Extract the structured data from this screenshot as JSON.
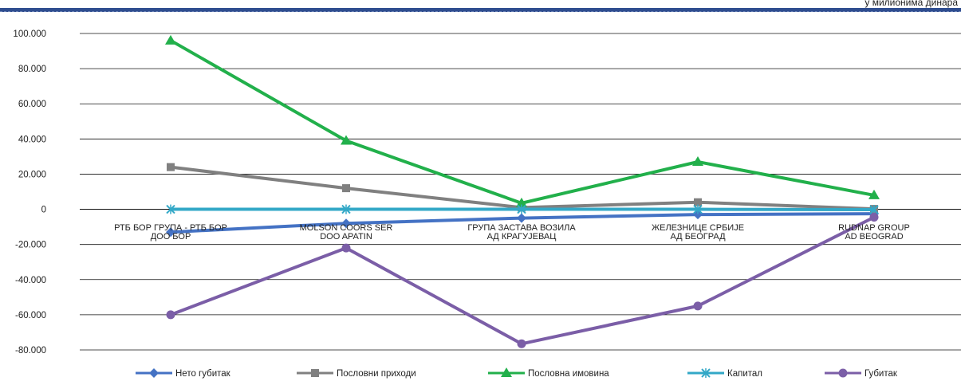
{
  "unit_label": "у милионима динара",
  "chart_data": {
    "type": "line",
    "title": "",
    "xlabel": "",
    "ylabel": "",
    "ylim": [
      -80000,
      100000
    ],
    "yticks": [
      100000,
      80000,
      60000,
      40000,
      20000,
      0,
      -20000,
      -40000,
      -60000,
      -80000
    ],
    "ytick_labels": [
      "100.000",
      "80.000",
      "60.000",
      "40.000",
      "20.000",
      "0",
      "-20.000",
      "-40.000",
      "-60.000",
      "-80.000"
    ],
    "grid": true,
    "legend_position": "bottom",
    "categories": [
      [
        "РТБ БОР ГРУПА - РТБ БОР",
        "ДОО БОР"
      ],
      [
        "MOLSON COORS SER",
        "DOO APATIN"
      ],
      [
        "ГРУПА ЗАСТАВА ВОЗИЛА",
        "АД КРАГУЈЕВАЦ"
      ],
      [
        "ЖЕЛЕЗНИЦЕ СРБИЈЕ",
        "АД БЕОГРАД"
      ],
      [
        "RUDNAP GROUP",
        "AD BEOGRAD"
      ]
    ],
    "series": [
      {
        "name": "Нето губитак",
        "color": "#4472c4",
        "marker": "diamond",
        "values": [
          -13000,
          -8000,
          -5000,
          -3000,
          -2500
        ]
      },
      {
        "name": "Пословни приходи",
        "color": "#808080",
        "marker": "square",
        "values": [
          24000,
          12000,
          1000,
          4000,
          200
        ]
      },
      {
        "name": "Пословна имовина",
        "color": "#22b04b",
        "marker": "triangle",
        "values": [
          96000,
          39000,
          3500,
          27000,
          8000
        ]
      },
      {
        "name": "Капитал",
        "color": "#33a8c7",
        "marker": "x",
        "values": [
          0,
          0,
          0,
          0,
          -200
        ]
      },
      {
        "name": "Губитак",
        "color": "#7b5ea7",
        "marker": "circle",
        "values": [
          -60000,
          -22000,
          -76500,
          -55000,
          -4500
        ]
      }
    ]
  }
}
